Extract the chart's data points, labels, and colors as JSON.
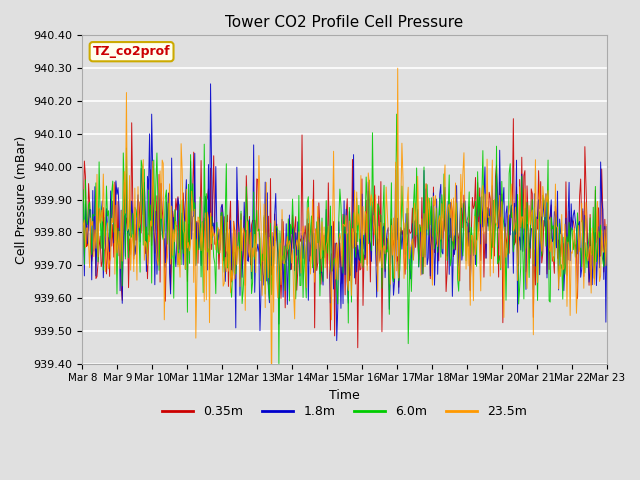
{
  "title": "Tower CO2 Profile Cell Pressure",
  "ylabel": "Cell Pressure (mBar)",
  "xlabel": "Time",
  "annotation_text": "TZ_co2prof",
  "annotation_bg": "#ffffee",
  "annotation_border": "#ccaa00",
  "annotation_text_color": "#cc0000",
  "ylim": [
    939.4,
    940.4
  ],
  "yticks": [
    939.4,
    939.5,
    939.6,
    939.7,
    939.8,
    939.9,
    940.0,
    940.1,
    940.2,
    940.3,
    940.4
  ],
  "xtick_labels": [
    "Mar 8",
    "Mar 9",
    "Mar 10",
    "Mar 11",
    "Mar 12",
    "Mar 13",
    "Mar 14",
    "Mar 15",
    "Mar 16",
    "Mar 17",
    "Mar 18",
    "Mar 19",
    "Mar 20",
    "Mar 21",
    "Mar 22",
    "Mar 23"
  ],
  "series_labels": [
    "0.35m",
    "1.8m",
    "6.0m",
    "23.5m"
  ],
  "series_colors": [
    "#cc0000",
    "#0000cc",
    "#00cc00",
    "#ff9900"
  ],
  "background_color": "#e0e0e0",
  "plot_bg_color": "#e0e0e0",
  "grid_color": "#ffffff",
  "n_points": 500,
  "seed": 42
}
